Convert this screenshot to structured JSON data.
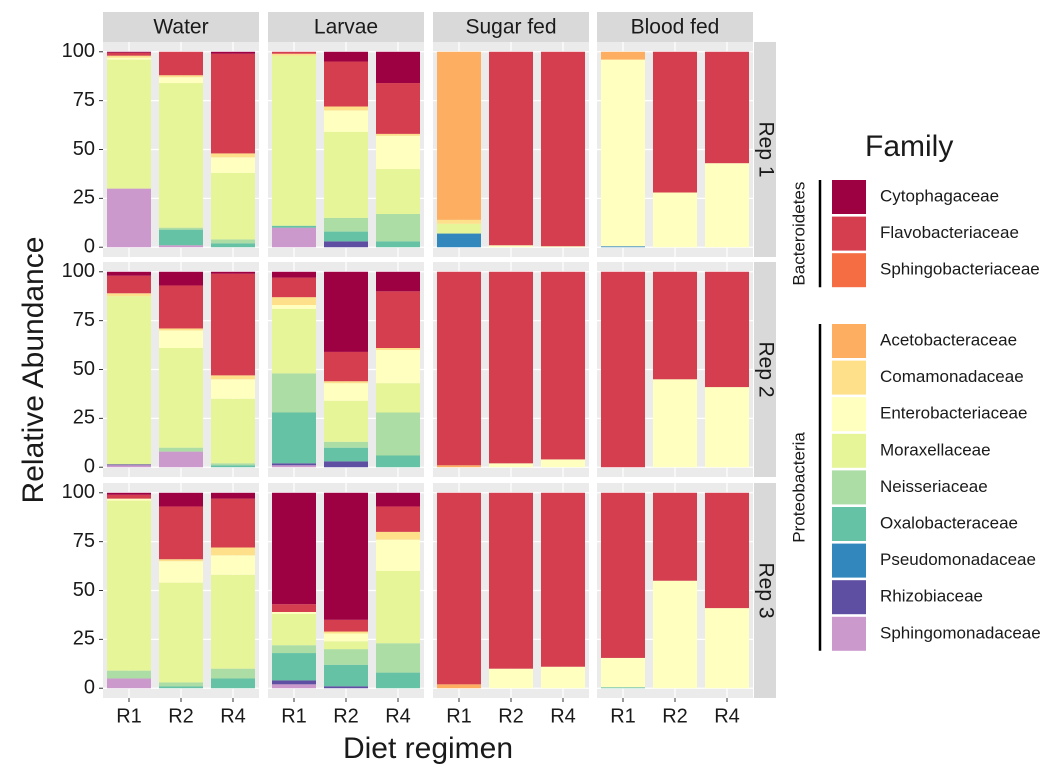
{
  "chart_data": {
    "type": "bar",
    "stacked": true,
    "x_label": "Diet regimen",
    "y_label": "Relative Abundance",
    "columns": [
      "Water",
      "Larvae",
      "Sugar fed",
      "Blood fed"
    ],
    "rows": [
      "Rep 1",
      "Rep 2",
      "Rep 3"
    ],
    "categories": [
      "R1",
      "R2",
      "R4"
    ],
    "ylim": [
      -5,
      105
    ],
    "yticks": [
      0,
      25,
      50,
      75,
      100
    ],
    "grid": true,
    "legend_title": "Family",
    "legend_position": "right",
    "legend_groups": [
      {
        "name": "Bacteroidetes",
        "series": [
          {
            "name": "Cytophagaceae",
            "color": "#9e0142"
          },
          {
            "name": "Flavobacteriaceae",
            "color": "#d53e4f"
          },
          {
            "name": "Sphingobacteriaceae",
            "color": "#f46d43"
          }
        ]
      },
      {
        "name": "Proteobacteria",
        "series": [
          {
            "name": "Acetobacteraceae",
            "color": "#fdae61"
          },
          {
            "name": "Comamonadaceae",
            "color": "#fee08b"
          },
          {
            "name": "Enterobacteriaceae",
            "color": "#ffffbf"
          },
          {
            "name": "Moraxellaceae",
            "color": "#e6f598"
          },
          {
            "name": "Neisseriaceae",
            "color": "#abdda4"
          },
          {
            "name": "Oxalobacteraceae",
            "color": "#66c2a5"
          },
          {
            "name": "Pseudomonadaceae",
            "color": "#3288bd"
          },
          {
            "name": "Rhizobiaceae",
            "color": "#5e4fa2"
          },
          {
            "name": "Sphingomonadaceae",
            "color": "#cc99cc"
          }
        ]
      }
    ],
    "values": [
      [
        [
          [
            0.5,
            0,
            1
          ],
          [
            1.5,
            12,
            51
          ],
          [
            0,
            0,
            0
          ],
          [
            0,
            0,
            0
          ],
          [
            1,
            1,
            2
          ],
          [
            1,
            3,
            8
          ],
          [
            66,
            74,
            34
          ],
          [
            0,
            1,
            2
          ],
          [
            0,
            8,
            2
          ],
          [
            0,
            0,
            0
          ],
          [
            0,
            0,
            0
          ],
          [
            30,
            1,
            0
          ]
        ],
        [
          [
            0,
            5,
            16
          ],
          [
            1,
            23,
            26
          ],
          [
            0,
            0,
            0
          ],
          [
            0,
            0,
            0
          ],
          [
            1,
            2,
            1
          ],
          [
            0,
            11,
            17
          ],
          [
            87,
            44,
            23
          ],
          [
            0,
            7,
            14
          ],
          [
            1,
            5,
            3
          ],
          [
            0,
            0,
            0
          ],
          [
            0,
            3,
            0
          ],
          [
            10,
            0,
            0
          ]
        ],
        [
          [
            0,
            0,
            0
          ],
          [
            0,
            99,
            99.5
          ],
          [
            0,
            0,
            0
          ],
          [
            86,
            0,
            0
          ],
          [
            2,
            0,
            0
          ],
          [
            0,
            1,
            0.5
          ],
          [
            5,
            0,
            0
          ],
          [
            0,
            0,
            0
          ],
          [
            0,
            0,
            0
          ],
          [
            7,
            0,
            0
          ],
          [
            0,
            0,
            0
          ],
          [
            0,
            0,
            0
          ]
        ],
        [
          [
            0,
            0,
            0
          ],
          [
            0,
            72,
            57
          ],
          [
            0,
            0,
            0
          ],
          [
            4,
            0,
            0
          ],
          [
            0,
            0,
            0
          ],
          [
            95.5,
            28,
            43
          ],
          [
            0,
            0,
            0
          ],
          [
            0,
            0,
            0
          ],
          [
            0,
            0,
            0
          ],
          [
            0.5,
            0,
            0
          ],
          [
            0,
            0,
            0
          ],
          [
            0,
            0,
            0
          ]
        ]
      ],
      [
        [
          [
            2,
            7,
            1
          ],
          [
            9,
            22,
            52
          ],
          [
            0,
            0,
            0
          ],
          [
            0,
            0,
            0
          ],
          [
            1.5,
            1,
            2
          ],
          [
            0,
            9,
            10
          ],
          [
            86,
            51,
            33
          ],
          [
            0,
            2,
            1
          ],
          [
            0,
            0,
            1
          ],
          [
            0,
            0,
            0
          ],
          [
            0.5,
            0,
            0
          ],
          [
            1,
            8,
            0
          ]
        ],
        [
          [
            3,
            41,
            10
          ],
          [
            10,
            15,
            29
          ],
          [
            0,
            0,
            0
          ],
          [
            0,
            0,
            0
          ],
          [
            4,
            1,
            1
          ],
          [
            2,
            9,
            17
          ],
          [
            33,
            21,
            15
          ],
          [
            20,
            3,
            22
          ],
          [
            26,
            7,
            6
          ],
          [
            0,
            0,
            0
          ],
          [
            1,
            3,
            0
          ],
          [
            1,
            0,
            0
          ]
        ],
        [
          [
            0,
            0,
            0
          ],
          [
            99,
            98,
            96
          ],
          [
            0,
            0,
            0
          ],
          [
            1,
            0,
            0
          ],
          [
            0,
            0,
            0
          ],
          [
            0,
            2,
            4
          ],
          [
            0,
            0,
            0
          ],
          [
            0,
            0,
            0
          ],
          [
            0,
            0,
            0
          ],
          [
            0,
            0,
            0
          ],
          [
            0,
            0,
            0
          ],
          [
            0,
            0,
            0
          ]
        ],
        [
          [
            0,
            0,
            0
          ],
          [
            100,
            55,
            59
          ],
          [
            0,
            0,
            0
          ],
          [
            0,
            0,
            0
          ],
          [
            0,
            0,
            0
          ],
          [
            0,
            45,
            41
          ],
          [
            0,
            0,
            0
          ],
          [
            0,
            0,
            0
          ],
          [
            0,
            0,
            0
          ],
          [
            0,
            0,
            0
          ],
          [
            0,
            0,
            0
          ],
          [
            0,
            0,
            0
          ]
        ]
      ],
      [
        [
          [
            1,
            7,
            3
          ],
          [
            2,
            27,
            25
          ],
          [
            0,
            0,
            0
          ],
          [
            0,
            0,
            0
          ],
          [
            0,
            1,
            4
          ],
          [
            1,
            11,
            10
          ],
          [
            87,
            51,
            48
          ],
          [
            4,
            2,
            5
          ],
          [
            0,
            1,
            5
          ],
          [
            0,
            0,
            0
          ],
          [
            0,
            0,
            0
          ],
          [
            5,
            0,
            0
          ]
        ],
        [
          [
            57,
            65,
            7
          ],
          [
            4,
            6,
            13
          ],
          [
            0,
            0,
            0
          ],
          [
            0,
            0,
            0
          ],
          [
            0,
            1,
            4
          ],
          [
            1,
            4,
            16
          ],
          [
            16,
            4,
            37
          ],
          [
            4,
            8,
            15
          ],
          [
            14,
            11,
            8
          ],
          [
            0,
            0,
            0
          ],
          [
            2,
            1,
            0
          ],
          [
            2,
            0,
            0
          ]
        ],
        [
          [
            0,
            0,
            0
          ],
          [
            98,
            90,
            89
          ],
          [
            0,
            0,
            0
          ],
          [
            2,
            0,
            0
          ],
          [
            0,
            0,
            0
          ],
          [
            0,
            10,
            11
          ],
          [
            0,
            0,
            0
          ],
          [
            0,
            0,
            0
          ],
          [
            0,
            0,
            0
          ],
          [
            0,
            0,
            0
          ],
          [
            0,
            0,
            0
          ],
          [
            0,
            0,
            0
          ]
        ],
        [
          [
            0,
            0,
            0
          ],
          [
            84.5,
            45,
            59
          ],
          [
            0,
            0,
            0
          ],
          [
            0,
            0,
            0
          ],
          [
            0,
            0,
            0
          ],
          [
            15,
            55,
            41
          ],
          [
            0,
            0,
            0
          ],
          [
            0,
            0,
            0
          ],
          [
            0.5,
            0,
            0
          ],
          [
            0,
            0,
            0
          ],
          [
            0,
            0,
            0
          ],
          [
            0,
            0,
            0
          ]
        ]
      ]
    ]
  }
}
